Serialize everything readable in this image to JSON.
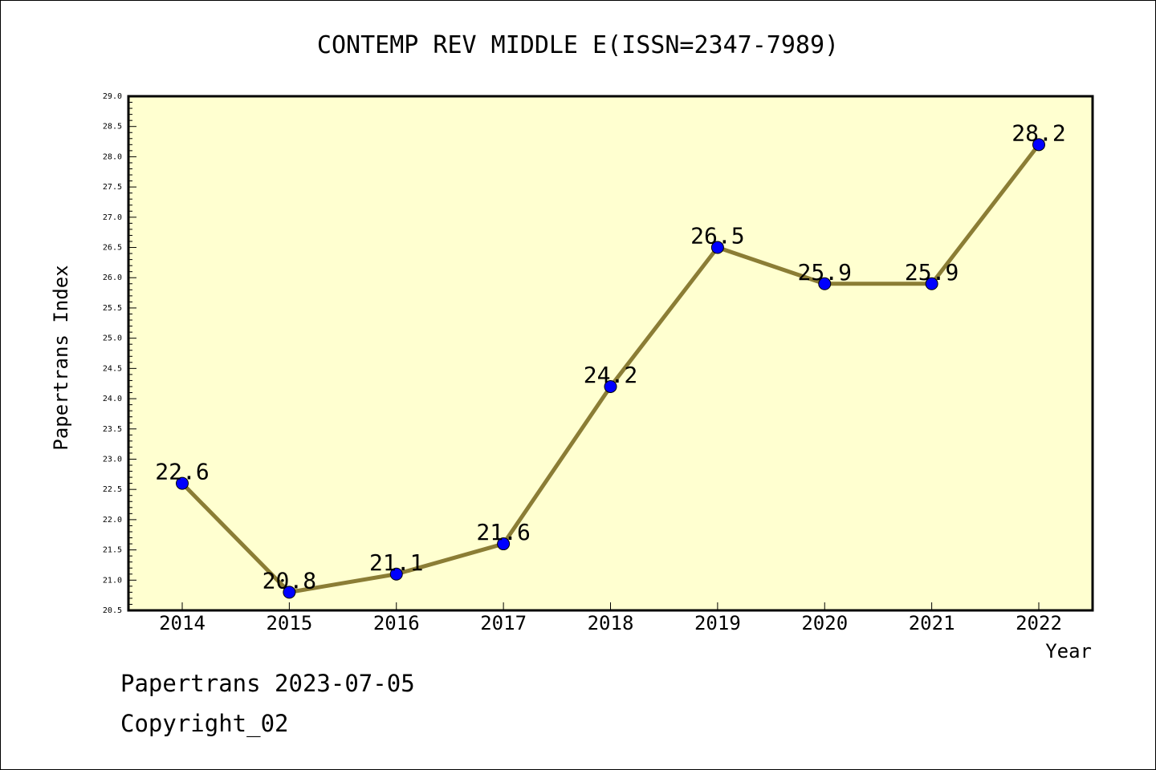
{
  "chart_data": {
    "type": "line",
    "title": "CONTEMP REV MIDDLE E(ISSN=2347-7989)",
    "xlabel": "Year",
    "ylabel": "Papertrans Index",
    "x": [
      "2014",
      "2015",
      "2016",
      "2017",
      "2018",
      "2019",
      "2020",
      "2021",
      "2022"
    ],
    "series": [
      {
        "values": [
          22.6,
          20.8,
          21.1,
          21.6,
          24.2,
          26.5,
          25.9,
          25.9,
          28.2
        ]
      }
    ],
    "data_labels": [
      "22.6",
      "20.8",
      "21.1",
      "21.6",
      "24.2",
      "26.5",
      "25.9",
      "25.9",
      "28.2"
    ],
    "ylim": [
      20.5,
      29.0
    ],
    "yticks": [
      "20.5",
      "21.0",
      "21.5",
      "22.0",
      "22.5",
      "23.0",
      "23.5",
      "24.0",
      "24.5",
      "25.0",
      "25.5",
      "26.0",
      "26.5",
      "27.0",
      "27.5",
      "28.0",
      "28.5",
      "29.0"
    ],
    "grid": false,
    "colors": {
      "plot_background": "#ffffd0",
      "line": "#8b7d35",
      "marker": "#0000ff"
    }
  },
  "footer": {
    "line1": "Papertrans 2023-07-05",
    "line2": "Copyright_02"
  }
}
